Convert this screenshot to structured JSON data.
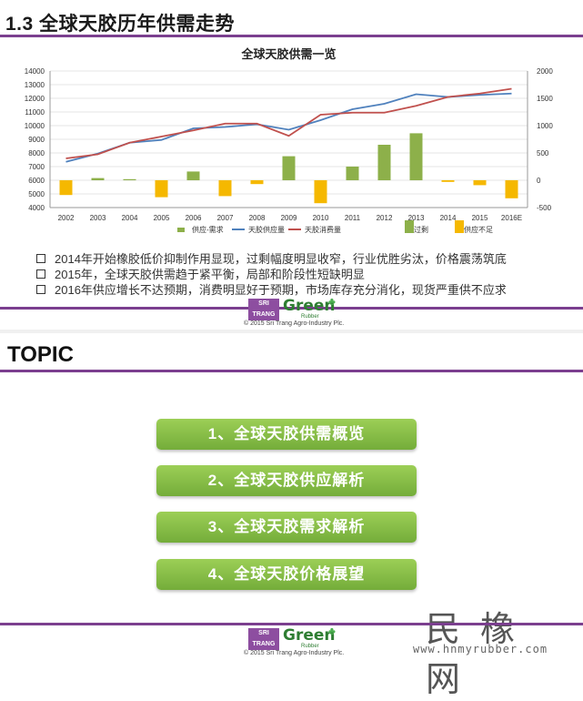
{
  "slide1": {
    "title": "1.3 全球天胶历年供需走势",
    "bullets": [
      "2014年开始橡胶低价抑制作用显现，过剩幅度明显收窄，行业优胜劣汰，价格震荡筑底",
      "2015年，全球天胶供需趋于紧平衡，局部和阶段性短缺明显",
      "2016年供应增长不达预期，消费明显好于预期，市场库存充分消化，现货严重供不应求"
    ],
    "logo": {
      "badge_line1": "SRI TRANG",
      "green": "Green",
      "rubber": "Rubber",
      "copyright": "© 2015 Sri Trang Agro-Industry Plc."
    }
  },
  "chart_data": {
    "type": "bar+line",
    "title": "全球天胶供需一览",
    "categories": [
      "2002",
      "2003",
      "2004",
      "2005",
      "2006",
      "2007",
      "2008",
      "2009",
      "2010",
      "2011",
      "2012",
      "2013",
      "2014",
      "2015",
      "2016E"
    ],
    "y_left": {
      "min": 4000,
      "max": 14000,
      "ticks": [
        4000,
        5000,
        6000,
        7000,
        8000,
        9000,
        10000,
        11000,
        12000,
        13000,
        14000
      ]
    },
    "y_right": {
      "min": -500,
      "max": 2000,
      "ticks": [
        -500,
        0,
        500,
        1000,
        1500,
        2000
      ]
    },
    "series": [
      {
        "name": "供应-需求",
        "type": "bar",
        "axis": "right",
        "color": "#8db04a",
        "values": [
          -270,
          40,
          20,
          -310,
          160,
          -290,
          -70,
          440,
          -420,
          250,
          650,
          860,
          -30,
          -90,
          -330
        ]
      },
      {
        "name": "天胶供应量",
        "type": "line",
        "axis": "left",
        "color": "#4f81bd",
        "values": [
          7350,
          7950,
          8750,
          8950,
          9800,
          9900,
          10100,
          9700,
          10400,
          11200,
          11600,
          12300,
          12100,
          12250,
          12350
        ]
      },
      {
        "name": "天胶消费量",
        "type": "line",
        "axis": "left",
        "color": "#c0504d",
        "values": [
          7600,
          7900,
          8750,
          9200,
          9650,
          10150,
          10150,
          9250,
          10800,
          10950,
          10950,
          11450,
          12100,
          12350,
          12700
        ]
      }
    ],
    "legend_extra": [
      {
        "name": "过剩",
        "color": "#8db04a"
      },
      {
        "name": "供应不足",
        "color": "#f5b800"
      }
    ],
    "shortage_color": "#f5b800",
    "legend_position": "bottom"
  },
  "slide2": {
    "title": "TOPIC",
    "topics": [
      "1、全球天胶供需概览",
      "2、全球天胶供应解析",
      "3、全球天胶需求解析",
      "4、全球天胶价格展望"
    ],
    "watermark_cn": "民橡网",
    "watermark_url": "www.hnmyrubber.com",
    "logo": {
      "badge_line1": "SRI TRANG",
      "green": "Green",
      "rubber": "Rubber",
      "copyright": "© 2015 Sri Trang Agro-Industry Plc."
    }
  }
}
